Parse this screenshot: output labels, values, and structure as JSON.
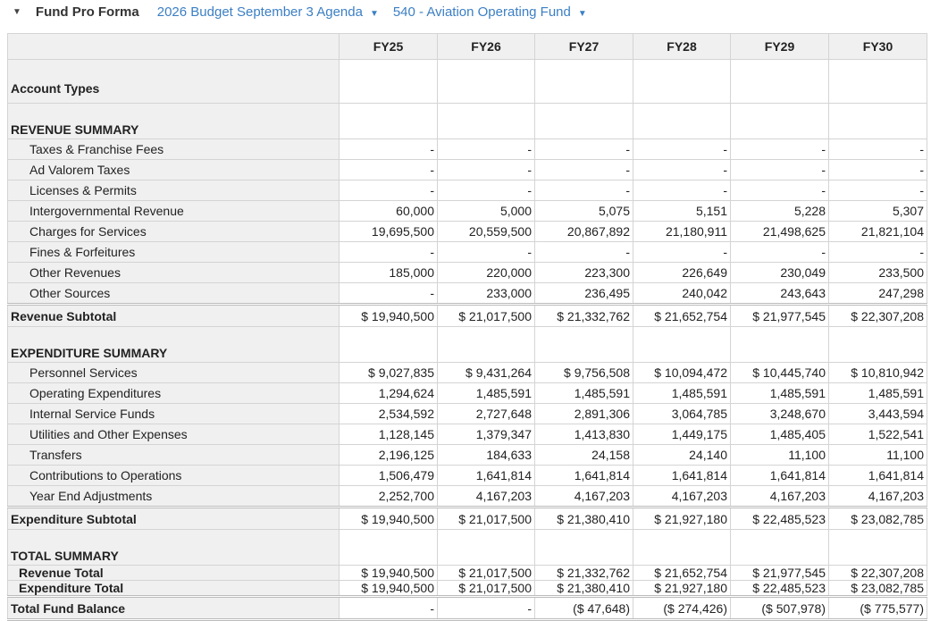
{
  "header": {
    "title": "Fund Pro Forma",
    "budget": "2026 Budget September 3 Agenda",
    "fund": "540 - Aviation Operating Fund"
  },
  "columns": [
    "FY25",
    "FY26",
    "FY27",
    "FY28",
    "FY29",
    "FY30"
  ],
  "rows": [
    {
      "type": "tall",
      "label": "Account Types",
      "values": [
        "",
        "",
        "",
        "",
        "",
        ""
      ]
    },
    {
      "type": "sec",
      "label": "REVENUE SUMMARY",
      "values": [
        "",
        "",
        "",
        "",
        "",
        ""
      ]
    },
    {
      "type": "item",
      "label": "Taxes & Franchise Fees",
      "values": [
        "-",
        "-",
        "-",
        "-",
        "-",
        "-"
      ]
    },
    {
      "type": "item",
      "label": "Ad Valorem Taxes",
      "values": [
        "-",
        "-",
        "-",
        "-",
        "-",
        "-"
      ]
    },
    {
      "type": "item",
      "label": "Licenses & Permits",
      "values": [
        "-",
        "-",
        "-",
        "-",
        "-",
        "-"
      ]
    },
    {
      "type": "item",
      "label": "Intergovernmental Revenue",
      "values": [
        "60,000",
        "5,000",
        "5,075",
        "5,151",
        "5,228",
        "5,307"
      ]
    },
    {
      "type": "item",
      "label": "Charges for Services",
      "values": [
        "19,695,500",
        "20,559,500",
        "20,867,892",
        "21,180,911",
        "21,498,625",
        "21,821,104"
      ]
    },
    {
      "type": "item",
      "label": "Fines & Forfeitures",
      "values": [
        "-",
        "-",
        "-",
        "-",
        "-",
        "-"
      ]
    },
    {
      "type": "item",
      "label": "Other Revenues",
      "values": [
        "185,000",
        "220,000",
        "223,300",
        "226,649",
        "230,049",
        "233,500"
      ]
    },
    {
      "type": "item",
      "label": "Other Sources",
      "values": [
        "-",
        "233,000",
        "236,495",
        "240,042",
        "243,643",
        "247,298"
      ]
    },
    {
      "type": "total",
      "label": "Revenue Subtotal",
      "values": [
        "$ 19,940,500",
        "$ 21,017,500",
        "$ 21,332,762",
        "$ 21,652,754",
        "$ 21,977,545",
        "$ 22,307,208"
      ]
    },
    {
      "type": "sec",
      "label": "EXPENDITURE SUMMARY",
      "values": [
        "",
        "",
        "",
        "",
        "",
        ""
      ]
    },
    {
      "type": "item",
      "label": "Personnel Services",
      "values": [
        "$ 9,027,835",
        "$ 9,431,264",
        "$ 9,756,508",
        "$ 10,094,472",
        "$ 10,445,740",
        "$ 10,810,942"
      ]
    },
    {
      "type": "item",
      "label": "Operating Expenditures",
      "values": [
        "1,294,624",
        "1,485,591",
        "1,485,591",
        "1,485,591",
        "1,485,591",
        "1,485,591"
      ]
    },
    {
      "type": "item",
      "label": "Internal Service Funds",
      "values": [
        "2,534,592",
        "2,727,648",
        "2,891,306",
        "3,064,785",
        "3,248,670",
        "3,443,594"
      ]
    },
    {
      "type": "item",
      "label": "Utilities and Other Expenses",
      "values": [
        "1,128,145",
        "1,379,347",
        "1,413,830",
        "1,449,175",
        "1,485,405",
        "1,522,541"
      ]
    },
    {
      "type": "item",
      "label": "Transfers",
      "values": [
        "2,196,125",
        "184,633",
        "24,158",
        "24,140",
        "11,100",
        "11,100"
      ]
    },
    {
      "type": "item",
      "label": "Contributions to Operations",
      "values": [
        "1,506,479",
        "1,641,814",
        "1,641,814",
        "1,641,814",
        "1,641,814",
        "1,641,814"
      ]
    },
    {
      "type": "item",
      "label": "Year End Adjustments",
      "values": [
        "2,252,700",
        "4,167,203",
        "4,167,203",
        "4,167,203",
        "4,167,203",
        "4,167,203"
      ]
    },
    {
      "type": "total",
      "label": "Expenditure Subtotal",
      "values": [
        "$ 19,940,500",
        "$ 21,017,500",
        "$ 21,380,410",
        "$ 21,927,180",
        "$ 22,485,523",
        "$ 23,082,785"
      ]
    },
    {
      "type": "sec",
      "label": "TOTAL SUMMARY",
      "values": [
        "",
        "",
        "",
        "",
        "",
        ""
      ]
    },
    {
      "type": "sub",
      "label": "Revenue Total",
      "values": [
        "$ 19,940,500",
        "$ 21,017,500",
        "$ 21,332,762",
        "$ 21,652,754",
        "$ 21,977,545",
        "$ 22,307,208"
      ]
    },
    {
      "type": "sub",
      "label": "Expenditure Total",
      "values": [
        "$ 19,940,500",
        "$ 21,017,500",
        "$ 21,380,410",
        "$ 21,927,180",
        "$ 22,485,523",
        "$ 23,082,785"
      ]
    },
    {
      "type": "total last",
      "label": "Total Fund Balance",
      "values": [
        "-",
        "-",
        "($ 47,648)",
        "($ 274,426)",
        "($ 507,978)",
        "($ 775,577)"
      ]
    }
  ]
}
